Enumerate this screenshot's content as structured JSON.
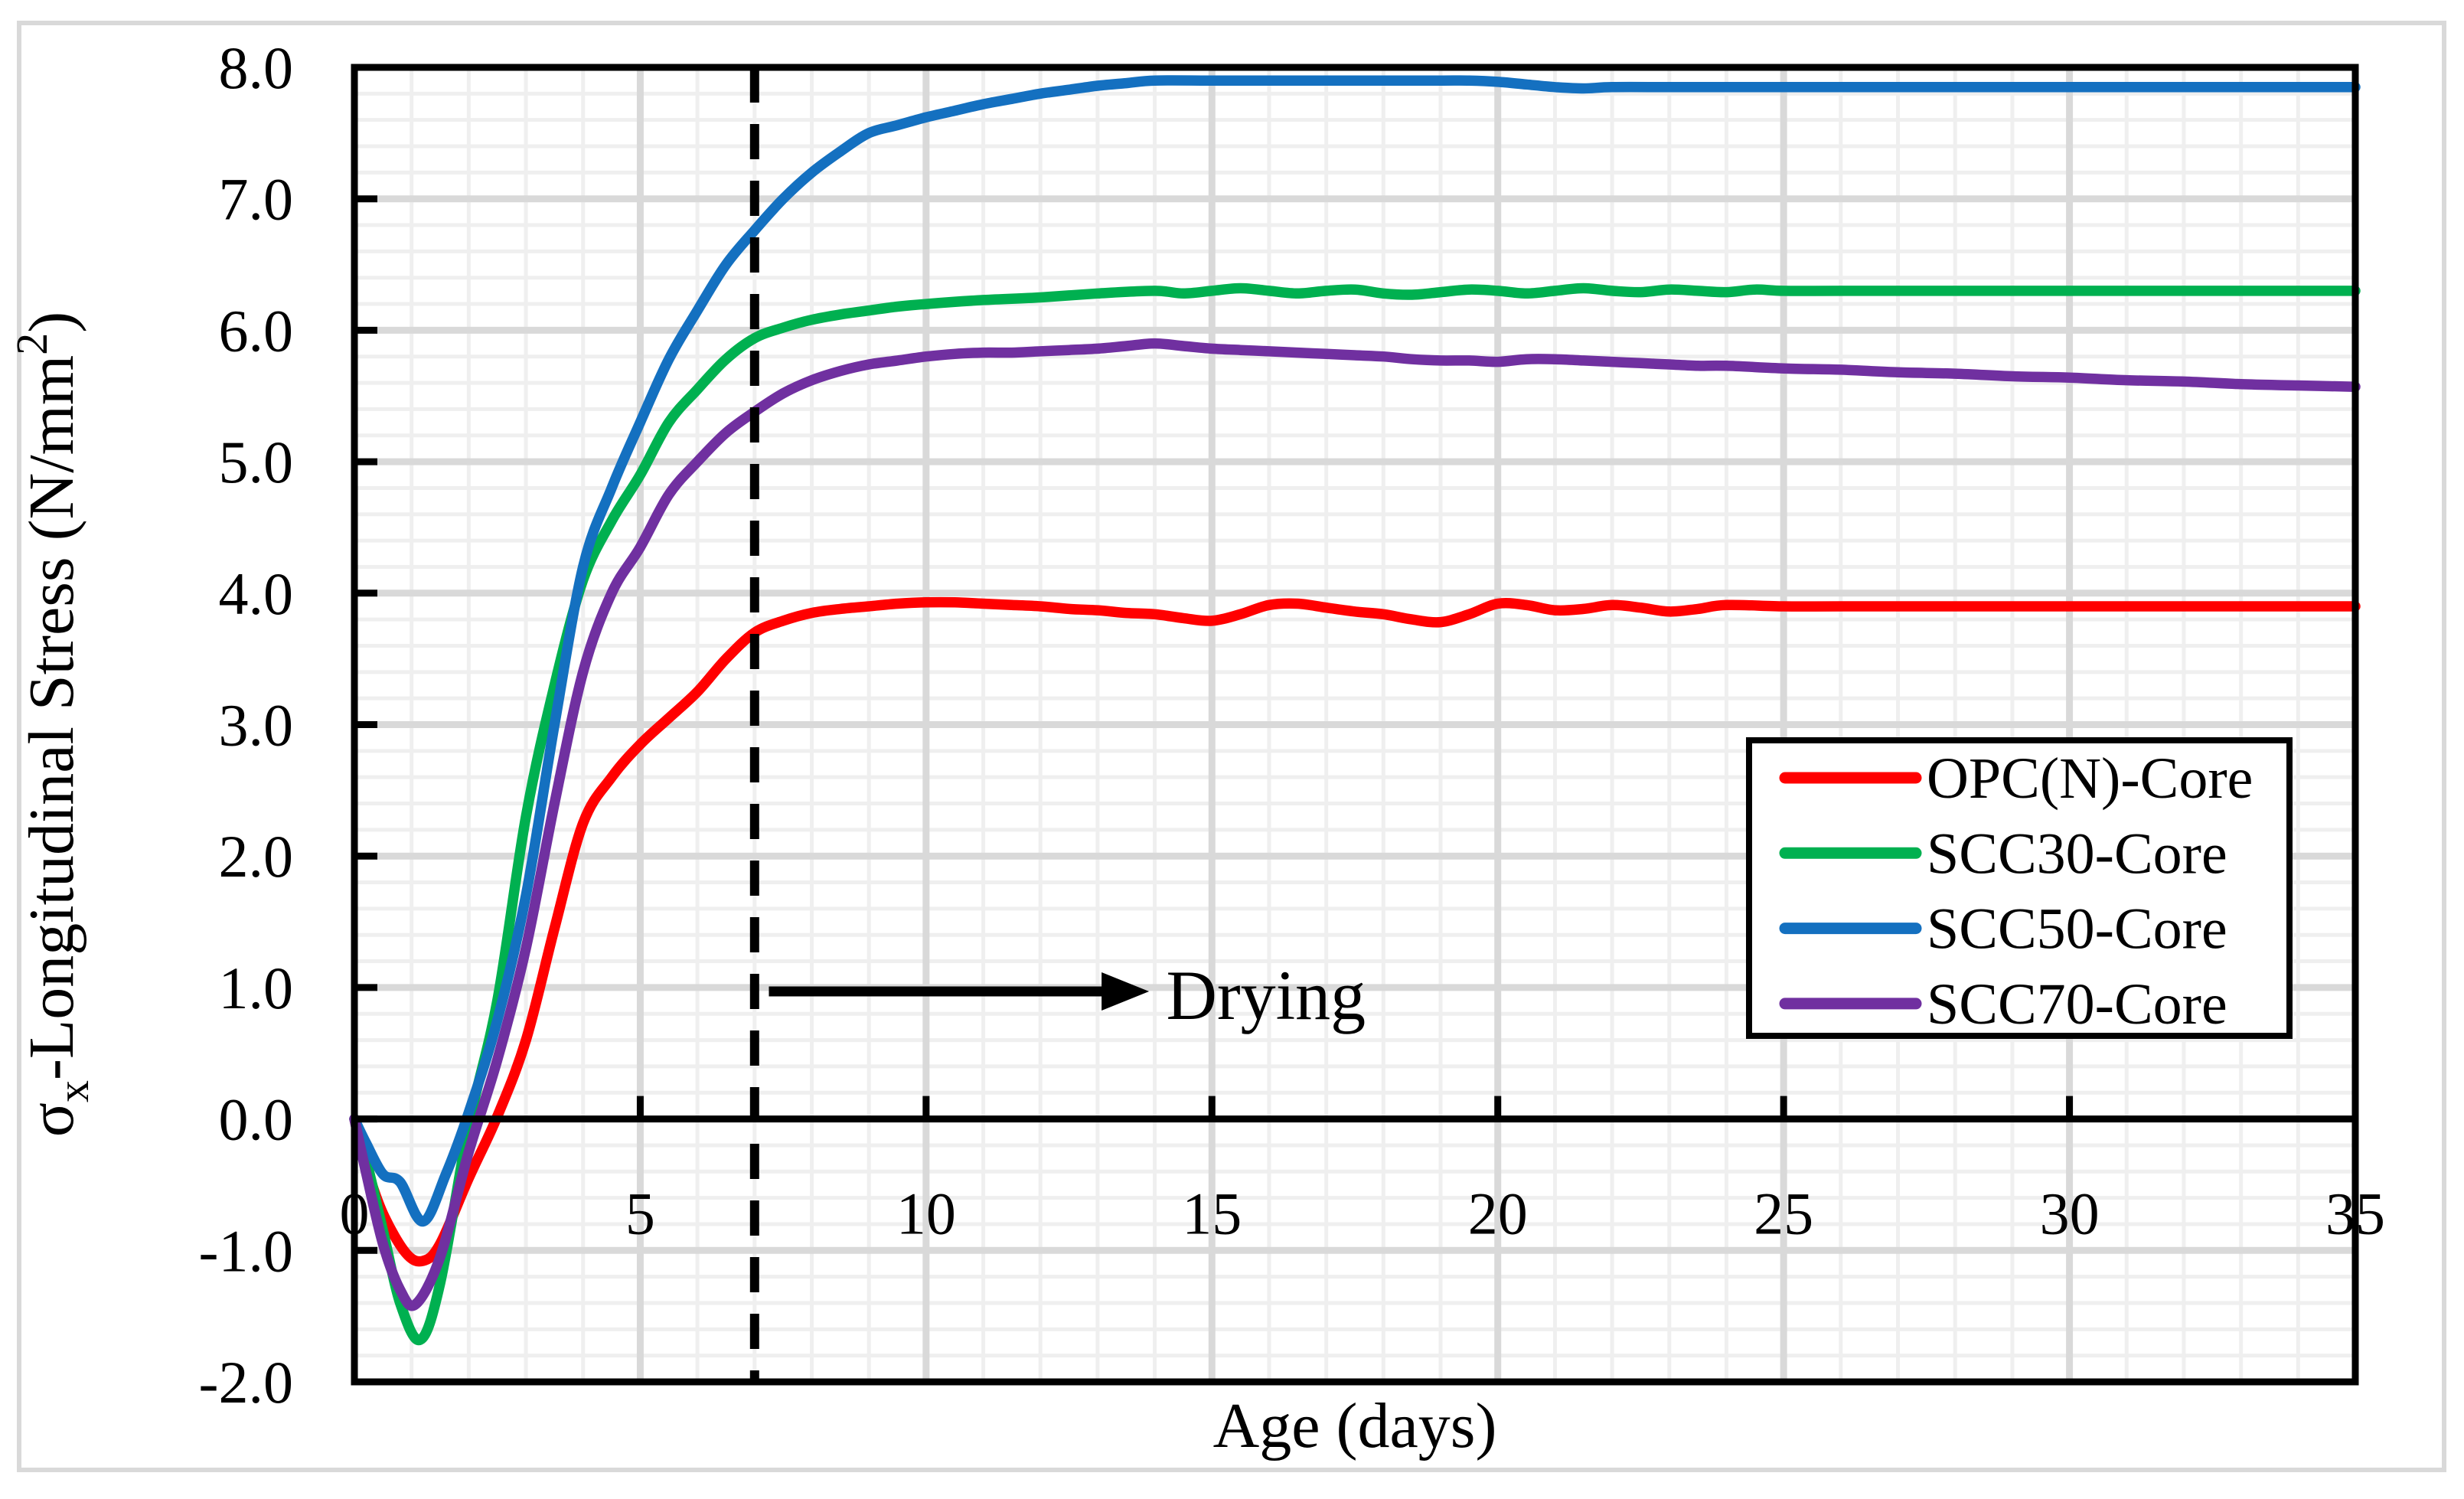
{
  "figure": {
    "outer_border_color": "#d9d9d9",
    "background": "#ffffff"
  },
  "chart_data": {
    "type": "line",
    "title": "",
    "xlabel": "Age (days)",
    "ylabel": "σx-Longitudinal Stress (N/mm2)",
    "ylabel_parts": [
      {
        "t": "σ"
      },
      {
        "t": "x",
        "style": "sub"
      },
      {
        "t": "-Longitudinal Stress (N/mm"
      },
      {
        "t": "2",
        "style": "sup"
      },
      {
        "t": ")"
      }
    ],
    "xlim": [
      0,
      35
    ],
    "ylim": [
      -2,
      8
    ],
    "x_major_step": 5,
    "x_minor_step": 1,
    "y_major_step": 1,
    "y_minor_step": 0.2,
    "xtick_labels": [
      "0",
      "5",
      "10",
      "15",
      "20",
      "25",
      "30",
      "35"
    ],
    "ytick_labels": [
      "-2.0",
      "-1.0",
      "0.0",
      "1.0",
      "2.0",
      "3.0",
      "4.0",
      "5.0",
      "6.0",
      "7.0",
      "8.0"
    ],
    "grid": {
      "minor_color": "#efefef",
      "major_color": "#d9d9d9",
      "on": true
    },
    "legend_position": "right-middle",
    "annotations": {
      "dashed_line_day": 7,
      "drying": {
        "label": "Drying",
        "y_value": 0.97,
        "arrow_start_day": 7.25,
        "arrow_tip_day": 13.9,
        "text_day": 14.2
      }
    },
    "series": [
      {
        "name": "OPC(N)-Core",
        "color": "#ff0000",
        "points": [
          [
            0,
            0
          ],
          [
            0.2,
            -0.35
          ],
          [
            0.5,
            -0.72
          ],
          [
            0.9,
            -1.02
          ],
          [
            1.2,
            -1.08
          ],
          [
            1.5,
            -0.95
          ],
          [
            2,
            -0.45
          ],
          [
            2.5,
            0.02
          ],
          [
            3,
            0.6
          ],
          [
            3.5,
            1.45
          ],
          [
            4,
            2.25
          ],
          [
            4.5,
            2.6
          ],
          [
            5,
            2.85
          ],
          [
            5.5,
            3.05
          ],
          [
            6,
            3.25
          ],
          [
            6.5,
            3.5
          ],
          [
            7,
            3.7
          ],
          [
            7.5,
            3.79
          ],
          [
            8,
            3.85
          ],
          [
            8.5,
            3.88
          ],
          [
            9,
            3.9
          ],
          [
            9.5,
            3.92
          ],
          [
            10,
            3.93
          ],
          [
            10.5,
            3.93
          ],
          [
            11,
            3.92
          ],
          [
            11.5,
            3.91
          ],
          [
            12,
            3.9
          ],
          [
            12.5,
            3.88
          ],
          [
            13,
            3.87
          ],
          [
            13.5,
            3.85
          ],
          [
            14,
            3.84
          ],
          [
            14.5,
            3.81
          ],
          [
            15,
            3.79
          ],
          [
            15.5,
            3.84
          ],
          [
            16,
            3.91
          ],
          [
            16.5,
            3.92
          ],
          [
            17,
            3.89
          ],
          [
            17.5,
            3.86
          ],
          [
            18,
            3.84
          ],
          [
            18.5,
            3.8
          ],
          [
            19,
            3.78
          ],
          [
            19.5,
            3.84
          ],
          [
            20,
            3.92
          ],
          [
            20.5,
            3.91
          ],
          [
            21,
            3.87
          ],
          [
            21.5,
            3.88
          ],
          [
            22,
            3.91
          ],
          [
            22.5,
            3.89
          ],
          [
            23,
            3.86
          ],
          [
            23.5,
            3.88
          ],
          [
            24,
            3.91
          ],
          [
            25,
            3.9
          ],
          [
            26,
            3.9
          ],
          [
            28,
            3.9
          ],
          [
            30,
            3.9
          ],
          [
            32,
            3.9
          ],
          [
            35,
            3.9
          ]
        ]
      },
      {
        "name": "SCC30-Core",
        "color": "#00b050",
        "points": [
          [
            0,
            0
          ],
          [
            0.2,
            -0.3
          ],
          [
            0.5,
            -0.85
          ],
          [
            0.8,
            -1.4
          ],
          [
            1.15,
            -1.68
          ],
          [
            1.5,
            -1.25
          ],
          [
            2,
            -0.05
          ],
          [
            2.5,
            0.9
          ],
          [
            3,
            2.3
          ],
          [
            3.5,
            3.3
          ],
          [
            4,
            4.1
          ],
          [
            4.5,
            4.55
          ],
          [
            5,
            4.9
          ],
          [
            5.5,
            5.3
          ],
          [
            6,
            5.55
          ],
          [
            6.5,
            5.78
          ],
          [
            7,
            5.94
          ],
          [
            7.5,
            6.02
          ],
          [
            8,
            6.08
          ],
          [
            8.5,
            6.12
          ],
          [
            9,
            6.15
          ],
          [
            9.5,
            6.18
          ],
          [
            10,
            6.2
          ],
          [
            11,
            6.23
          ],
          [
            12,
            6.25
          ],
          [
            13,
            6.28
          ],
          [
            14,
            6.3
          ],
          [
            14.5,
            6.28
          ],
          [
            15,
            6.3
          ],
          [
            15.5,
            6.32
          ],
          [
            16,
            6.3
          ],
          [
            16.5,
            6.28
          ],
          [
            17,
            6.3
          ],
          [
            17.5,
            6.31
          ],
          [
            18,
            6.28
          ],
          [
            18.5,
            6.27
          ],
          [
            19,
            6.29
          ],
          [
            19.5,
            6.31
          ],
          [
            20,
            6.3
          ],
          [
            20.5,
            6.28
          ],
          [
            21,
            6.3
          ],
          [
            21.5,
            6.32
          ],
          [
            22,
            6.3
          ],
          [
            22.5,
            6.29
          ],
          [
            23,
            6.31
          ],
          [
            23.5,
            6.3
          ],
          [
            24,
            6.29
          ],
          [
            24.5,
            6.31
          ],
          [
            25,
            6.3
          ],
          [
            26,
            6.3
          ],
          [
            28,
            6.3
          ],
          [
            30,
            6.3
          ],
          [
            32,
            6.3
          ],
          [
            35,
            6.3
          ]
        ]
      },
      {
        "name": "SCC50-Core",
        "color": "#1470c0",
        "points": [
          [
            0,
            0
          ],
          [
            0.2,
            -0.18
          ],
          [
            0.5,
            -0.42
          ],
          [
            0.8,
            -0.48
          ],
          [
            1.2,
            -0.78
          ],
          [
            1.6,
            -0.42
          ],
          [
            2,
            0.05
          ],
          [
            2.5,
            0.75
          ],
          [
            3,
            1.7
          ],
          [
            3.5,
            3.0
          ],
          [
            4,
            4.2
          ],
          [
            4.5,
            4.8
          ],
          [
            5,
            5.3
          ],
          [
            5.5,
            5.78
          ],
          [
            6,
            6.15
          ],
          [
            6.5,
            6.5
          ],
          [
            7,
            6.76
          ],
          [
            7.5,
            7.0
          ],
          [
            8,
            7.2
          ],
          [
            8.5,
            7.36
          ],
          [
            9,
            7.5
          ],
          [
            9.5,
            7.56
          ],
          [
            10,
            7.62
          ],
          [
            10.5,
            7.67
          ],
          [
            11,
            7.72
          ],
          [
            11.5,
            7.76
          ],
          [
            12,
            7.8
          ],
          [
            12.5,
            7.83
          ],
          [
            13,
            7.86
          ],
          [
            13.5,
            7.88
          ],
          [
            14,
            7.9
          ],
          [
            15,
            7.9
          ],
          [
            16,
            7.9
          ],
          [
            17,
            7.9
          ],
          [
            18,
            7.9
          ],
          [
            19,
            7.9
          ],
          [
            19.5,
            7.9
          ],
          [
            20,
            7.89
          ],
          [
            20.5,
            7.87
          ],
          [
            21,
            7.85
          ],
          [
            21.5,
            7.84
          ],
          [
            22,
            7.85
          ],
          [
            23,
            7.85
          ],
          [
            24,
            7.85
          ],
          [
            25,
            7.85
          ],
          [
            26,
            7.85
          ],
          [
            28,
            7.85
          ],
          [
            30,
            7.85
          ],
          [
            32,
            7.85
          ],
          [
            35,
            7.85
          ]
        ]
      },
      {
        "name": "SCC70-Core",
        "color": "#7030a0",
        "points": [
          [
            0,
            0
          ],
          [
            0.2,
            -0.4
          ],
          [
            0.5,
            -0.95
          ],
          [
            0.8,
            -1.3
          ],
          [
            1.07,
            -1.41
          ],
          [
            1.5,
            -1.05
          ],
          [
            2,
            -0.25
          ],
          [
            2.5,
            0.45
          ],
          [
            3,
            1.3
          ],
          [
            3.5,
            2.4
          ],
          [
            4,
            3.4
          ],
          [
            4.5,
            4.0
          ],
          [
            5,
            4.35
          ],
          [
            5.5,
            4.75
          ],
          [
            6,
            5.0
          ],
          [
            6.5,
            5.22
          ],
          [
            7,
            5.38
          ],
          [
            7.5,
            5.52
          ],
          [
            8,
            5.62
          ],
          [
            8.5,
            5.69
          ],
          [
            9,
            5.74
          ],
          [
            9.5,
            5.77
          ],
          [
            10,
            5.8
          ],
          [
            10.5,
            5.82
          ],
          [
            11,
            5.83
          ],
          [
            11.5,
            5.83
          ],
          [
            12,
            5.84
          ],
          [
            12.5,
            5.85
          ],
          [
            13,
            5.86
          ],
          [
            13.5,
            5.88
          ],
          [
            14,
            5.9
          ],
          [
            14.5,
            5.88
          ],
          [
            15,
            5.86
          ],
          [
            15.5,
            5.85
          ],
          [
            16,
            5.84
          ],
          [
            16.5,
            5.83
          ],
          [
            17,
            5.82
          ],
          [
            17.5,
            5.81
          ],
          [
            18,
            5.8
          ],
          [
            18.5,
            5.78
          ],
          [
            19,
            5.77
          ],
          [
            19.5,
            5.77
          ],
          [
            20,
            5.76
          ],
          [
            20.5,
            5.78
          ],
          [
            21,
            5.78
          ],
          [
            21.5,
            5.77
          ],
          [
            22,
            5.76
          ],
          [
            22.5,
            5.75
          ],
          [
            23,
            5.74
          ],
          [
            23.5,
            5.73
          ],
          [
            24,
            5.73
          ],
          [
            25,
            5.71
          ],
          [
            26,
            5.7
          ],
          [
            27,
            5.68
          ],
          [
            28,
            5.67
          ],
          [
            29,
            5.65
          ],
          [
            30,
            5.64
          ],
          [
            31,
            5.62
          ],
          [
            32,
            5.61
          ],
          [
            33,
            5.59
          ],
          [
            34,
            5.58
          ],
          [
            35,
            5.57
          ]
        ]
      }
    ]
  }
}
